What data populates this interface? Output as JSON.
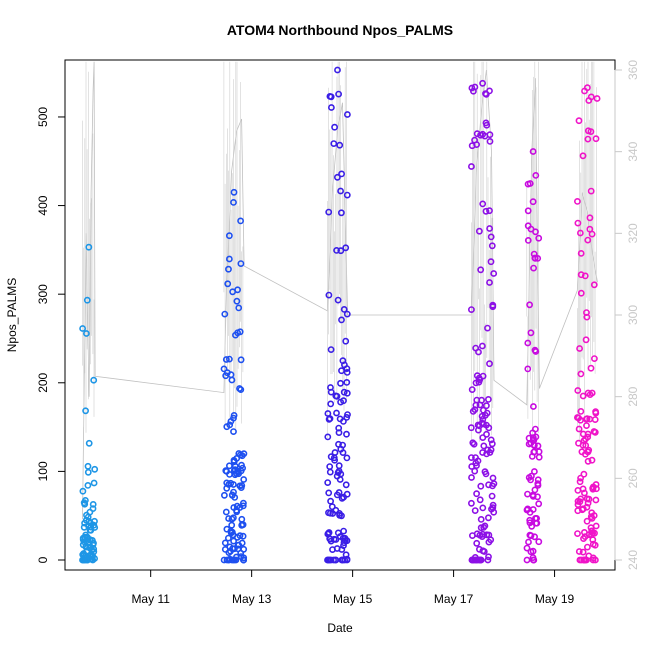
{
  "chart_data": {
    "type": "scatter",
    "title": "ATOM4 Northbound Npos_PALMS",
    "xlabel": "Date",
    "ylabel": "Npos_PALMS",
    "x_ticks": [
      "May 11",
      "May 13",
      "May 15",
      "May 17",
      "May 19"
    ],
    "y_ticks": [
      "0",
      "100",
      "200",
      "300",
      "400",
      "500"
    ],
    "y2_ticks": [
      "240",
      "260",
      "280",
      "300",
      "320",
      "340",
      "360"
    ],
    "xlim_days": [
      9.6,
      19.9
    ],
    "ylim": [
      0,
      553
    ],
    "y2lim": [
      240,
      360
    ],
    "colors": {
      "axis": "#000000",
      "secondary_axis": "#c8c8c8",
      "secondary_line": "#c0c0c0",
      "gradient_start": "#1e90ff",
      "gradient_end": "#ff00ff"
    },
    "marker": "open-circle",
    "series": [
      {
        "type": "scatter",
        "clusters": [
          {
            "date": "May 9.9",
            "x_range": [
              9.65,
              9.9
            ],
            "y_max": 353,
            "y_typical_max": 110,
            "color": "#1e96e6"
          },
          {
            "date": "May 12.6",
            "x_range": [
              12.45,
              12.85
            ],
            "y_max": 415,
            "y_typical_max": 280,
            "color": "#1e50f0"
          },
          {
            "date": "May 14.7",
            "x_range": [
              14.5,
              14.9
            ],
            "y_max": 553,
            "y_typical_max": 450,
            "color": "#3a1ee6"
          },
          {
            "date": "May 17.6",
            "x_range": [
              17.35,
              17.8
            ],
            "y_max": 538,
            "y_typical_max": 470,
            "color": "#8c10e6"
          },
          {
            "date": "May 18.6",
            "x_range": [
              18.45,
              18.7
            ],
            "y_max": 461,
            "y_typical_max": 320,
            "color": "#c80ae0"
          },
          {
            "date": "May 19.7",
            "x_range": [
              19.45,
              19.85
            ],
            "y_max": 533,
            "y_typical_max": 430,
            "color": "#f014c8"
          }
        ]
      },
      {
        "type": "line",
        "axis": "secondary",
        "values": [
          [
            9.65,
            250
          ],
          [
            9.72,
            320
          ],
          [
            9.78,
            280
          ],
          [
            9.82,
            330
          ],
          [
            9.86,
            355
          ],
          [
            9.88,
            362
          ],
          [
            9.9,
            285
          ],
          [
            12.45,
            281
          ],
          [
            12.5,
            305
          ],
          [
            12.6,
            335
          ],
          [
            12.7,
            345
          ],
          [
            12.8,
            348
          ],
          [
            12.85,
            312
          ],
          [
            14.5,
            301
          ],
          [
            14.6,
            330
          ],
          [
            14.7,
            345
          ],
          [
            14.8,
            352
          ],
          [
            14.9,
            300
          ],
          [
            17.35,
            300
          ],
          [
            17.45,
            335
          ],
          [
            17.55,
            350
          ],
          [
            17.65,
            360
          ],
          [
            17.75,
            340
          ],
          [
            17.8,
            284
          ],
          [
            18.45,
            278
          ],
          [
            18.55,
            340
          ],
          [
            18.62,
            358
          ],
          [
            18.7,
            282
          ],
          [
            19.45,
            306
          ],
          [
            19.55,
            330
          ],
          [
            19.65,
            325
          ],
          [
            19.75,
            315
          ],
          [
            19.85,
            308
          ]
        ]
      }
    ]
  }
}
